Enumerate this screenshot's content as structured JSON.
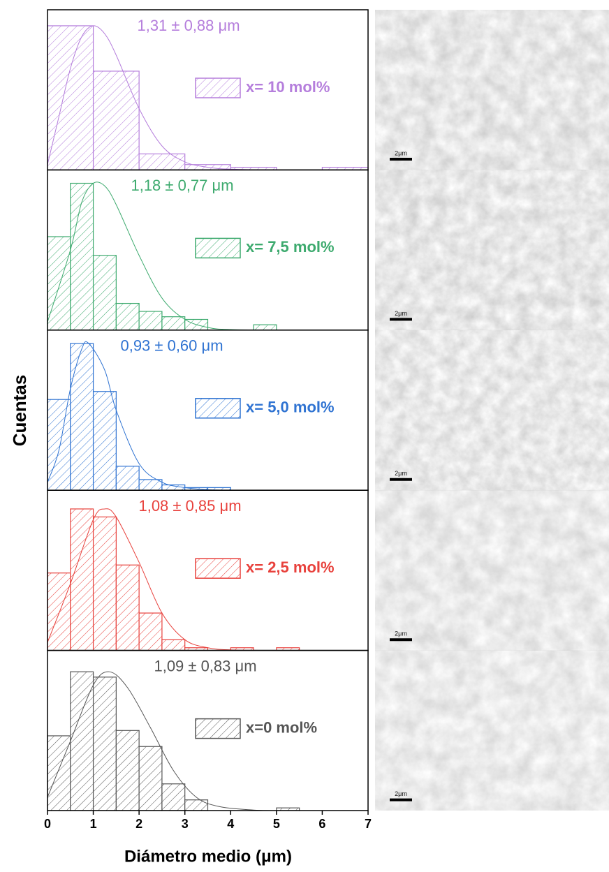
{
  "chart_data": {
    "type": "histogram",
    "x_label": "Diámetro medio (μm)",
    "y_label": "Cuentas",
    "xlim": [
      0,
      7
    ],
    "xticks": [
      0,
      1,
      2,
      3,
      4,
      5,
      6,
      7
    ],
    "panels": [
      {
        "name": "x= 10 mol%",
        "color": "#b57edc",
        "annotation": "1,31 ± 0,88 μm",
        "ylim": [
          0,
          60
        ],
        "bins": [
          0,
          1,
          2,
          3,
          4,
          5,
          6,
          7
        ],
        "counts": [
          54,
          37,
          6,
          2,
          1,
          0,
          1
        ],
        "fit": {
          "x": [
            0,
            0.25,
            0.5,
            0.75,
            1,
            1.25,
            1.5,
            2,
            2.5,
            3,
            3.5,
            4,
            5,
            7
          ],
          "y": [
            2,
            20,
            38,
            50,
            54,
            51,
            43,
            23,
            9,
            3,
            1,
            0.3,
            0,
            0
          ]
        }
      },
      {
        "name": "x= 7,5 mol%",
        "color": "#3daa6e",
        "annotation": "1,18 ± 0,77 μm",
        "ylim": [
          0,
          60
        ],
        "bins": [
          0,
          0.5,
          1,
          1.5,
          2,
          2.5,
          3,
          3.5,
          4,
          4.5,
          5
        ],
        "counts": [
          35,
          55,
          28,
          10,
          7,
          5,
          4,
          0,
          0,
          2
        ],
        "fit": {
          "x": [
            0,
            0.5,
            0.75,
            1,
            1.25,
            1.5,
            2,
            2.5,
            3,
            3.5,
            4,
            5
          ],
          "y": [
            3,
            30,
            48,
            55,
            54,
            47,
            28,
            12,
            4,
            1,
            0.2,
            0
          ]
        }
      },
      {
        "name": "x= 5,0 mol%",
        "color": "#2f73d2",
        "annotation": "0,93 ± 0,60 μm",
        "ylim": [
          0,
          60
        ],
        "bins": [
          0,
          0.5,
          1,
          1.5,
          2,
          2.5,
          3,
          3.5,
          4
        ],
        "counts": [
          34,
          55,
          37,
          9,
          4,
          2,
          1,
          1
        ],
        "fit": {
          "x": [
            0,
            0.25,
            0.5,
            0.75,
            0.9,
            1.25,
            1.5,
            2,
            2.5,
            3,
            3.5,
            4
          ],
          "y": [
            3,
            15,
            38,
            53,
            55,
            45,
            30,
            10,
            3,
            1,
            0.2,
            0
          ]
        }
      },
      {
        "name": "x= 2,5 mol%",
        "color": "#e8413c",
        "annotation": "1,08 ± 0,85 μm",
        "ylim": [
          0,
          60
        ],
        "bins": [
          0,
          0.5,
          1,
          1.5,
          2,
          2.5,
          3,
          3.5,
          4,
          4.5,
          5,
          5.5
        ],
        "counts": [
          29,
          53,
          50,
          32,
          14,
          4,
          1,
          0,
          1,
          0,
          1
        ],
        "fit": {
          "x": [
            0,
            0.5,
            1,
            1.25,
            1.5,
            2,
            2.5,
            3,
            3.5,
            4,
            5
          ],
          "y": [
            3,
            25,
            49,
            53,
            50,
            33,
            14,
            4,
            1,
            0.2,
            0
          ]
        }
      },
      {
        "name": "x=0 mol%",
        "color": "#555555",
        "annotation": "1,09 ± 0,83 μm",
        "ylim": [
          0,
          60
        ],
        "bins": [
          0,
          0.5,
          1,
          1.5,
          2,
          2.5,
          3,
          3.5,
          4,
          4.5,
          5,
          5.5
        ],
        "counts": [
          28,
          52,
          50,
          30,
          24,
          10,
          4,
          0,
          0,
          0,
          1
        ],
        "fit": {
          "x": [
            0,
            0.5,
            1,
            1.35,
            1.75,
            2.25,
            2.75,
            3.25,
            3.75,
            4.5,
            5
          ],
          "y": [
            5,
            26,
            47,
            52,
            46,
            31,
            15,
            5,
            1.5,
            0.2,
            0
          ]
        }
      }
    ],
    "images": [
      "2μm",
      "2μm",
      "2μm",
      "2μm",
      "2μm"
    ]
  }
}
